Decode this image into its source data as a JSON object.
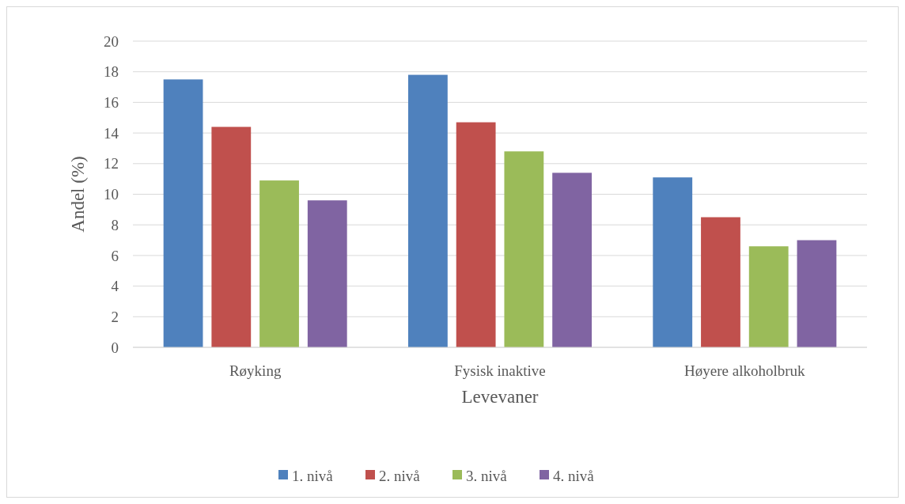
{
  "chart_data": {
    "type": "bar",
    "xlabel": "Levevaner",
    "ylabel": "Andel (%)",
    "categories": [
      "Røyking",
      "Fysisk inaktive",
      "Høyere alkoholbruk"
    ],
    "series": [
      {
        "name": "1. nivå",
        "color": "#4f81bd",
        "values": [
          17.5,
          17.8,
          11.1
        ]
      },
      {
        "name": "2. nivå",
        "color": "#c0504d",
        "values": [
          14.4,
          14.7,
          8.5
        ]
      },
      {
        "name": "3. nivå",
        "color": "#9bbb59",
        "values": [
          10.9,
          12.8,
          6.6
        ]
      },
      {
        "name": "4. nivå",
        "color": "#8064a2",
        "values": [
          9.6,
          11.4,
          7.0
        ]
      }
    ],
    "ylim": [
      0,
      20
    ],
    "yticks": [
      0,
      2,
      4,
      6,
      8,
      10,
      12,
      14,
      16,
      18,
      20
    ],
    "grid": "y",
    "legend": "bottom"
  }
}
